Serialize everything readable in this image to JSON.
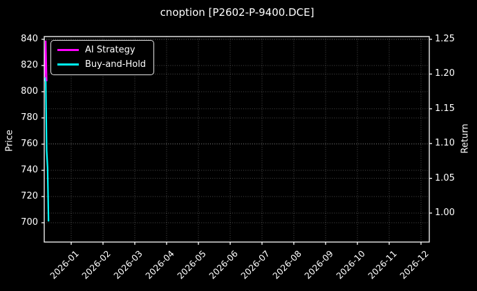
{
  "chart_data": {
    "type": "line",
    "title": "cnoption [P2602-P-9400.DCE]",
    "ylabel_left": "Price",
    "ylabel_right": "Return",
    "xlabel": "",
    "background": "#000000",
    "text_color": "#ffffff",
    "grid": "dotted gridlines for both y-axes and month x-ticks",
    "grid_color": "rgba(255,255,255,0.30)",
    "spine_color": "#ffffff",
    "legend_position": "upper left",
    "price_ticks": [
      840,
      820,
      800,
      780,
      760,
      740,
      720,
      700
    ],
    "return_ticks": [
      1.25,
      1.2,
      1.15,
      1.1,
      1.05,
      1.0
    ],
    "price_ylim": [
      686,
      842
    ],
    "return_ylim": [
      0.959,
      1.254
    ],
    "x_tick_labels": [
      "2026-01",
      "2026-02",
      "2026-03",
      "2026-04",
      "2026-05",
      "2026-06",
      "2026-07",
      "2026-08",
      "2026-09",
      "2026-10",
      "2026-11",
      "2026-12"
    ],
    "x_range_note": "data occupies only the first few days at the far left edge of the axis",
    "series": [
      {
        "name": "Buy-and-Hold",
        "color": "#00ffff",
        "axis": "price",
        "dates": [
          "2025-12-08",
          "2025-12-09",
          "2025-12-10",
          "2025-12-11",
          "2025-12-12"
        ],
        "values": [
          808,
          811,
          755,
          742,
          701
        ]
      },
      {
        "name": "AI Strategy",
        "color": "#ff00ff",
        "axis": "price",
        "dates": [
          "2025-12-08",
          "2025-12-09",
          "2025-12-10"
        ],
        "values": [
          811,
          839,
          808
        ]
      }
    ],
    "legend_order": [
      "AI Strategy",
      "Buy-and-Hold"
    ]
  }
}
